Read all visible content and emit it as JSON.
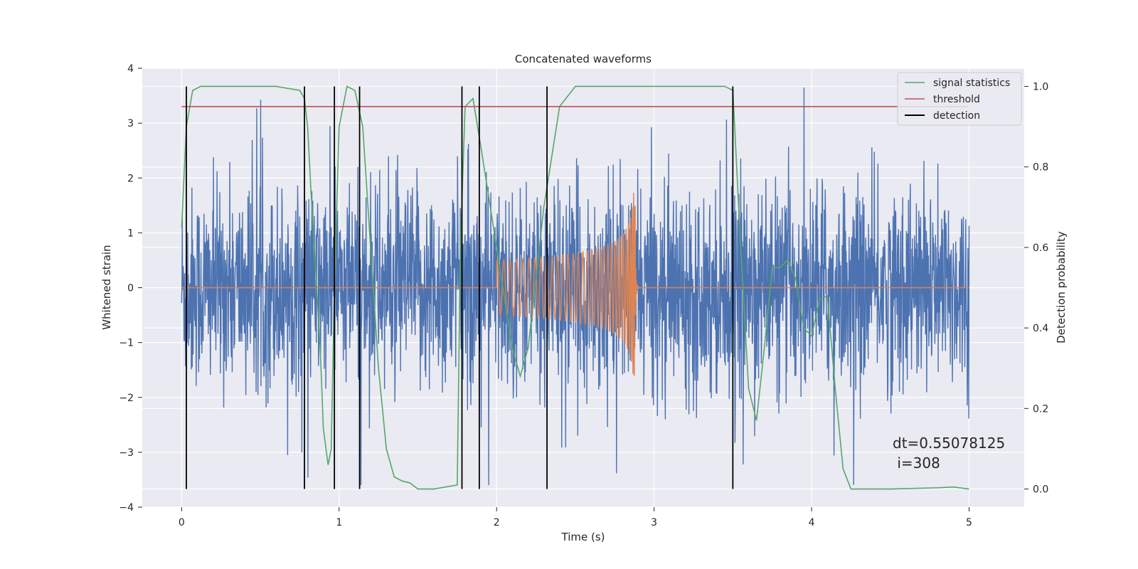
{
  "chart_data": {
    "type": "line",
    "title": "Concatenated waveforms",
    "xlabel": "Time (s)",
    "ylabel_left": "Whitened strain",
    "ylabel_right": "Detection probability",
    "xlim": [
      -0.25,
      5.35
    ],
    "ylim_left": [
      -4,
      4
    ],
    "ylim_right": [
      -0.045,
      1.045
    ],
    "x_ticks": [
      0,
      1,
      2,
      3,
      4,
      5
    ],
    "y_left_ticks": [
      -4,
      -3,
      -2,
      -1,
      0,
      1,
      2,
      3,
      4
    ],
    "y_right_ticks": [
      0.0,
      0.2,
      0.4,
      0.6,
      0.8,
      1.0
    ],
    "grid": true,
    "legend_position": "top-right",
    "series": [
      {
        "kind": "noise",
        "axis": "left",
        "color": "#4c72b0",
        "x_range": [
          0,
          5
        ],
        "typical_amplitude": 1.2,
        "max_peak": 3.65,
        "min_trough": -3.6
      },
      {
        "kind": "chirp",
        "axis": "left",
        "color": "#dd8452",
        "x_range": [
          0,
          5
        ],
        "zero_outside": true,
        "onset_x": 2.0,
        "onset_amplitude": 0.5,
        "merger_x": 2.88,
        "merger_peak": 2.05,
        "merger_trough": -1.6
      },
      {
        "name": "signal statistics",
        "axis": "right",
        "color": "#55a868",
        "x": [
          0,
          0.03,
          0.07,
          0.12,
          0.3,
          0.6,
          0.75,
          0.78,
          0.8,
          0.82,
          0.85,
          0.88,
          0.9,
          0.93,
          0.95,
          0.97,
          1.0,
          1.05,
          1.1,
          1.15,
          1.2,
          1.25,
          1.3,
          1.35,
          1.4,
          1.45,
          1.5,
          1.6,
          1.75,
          1.77,
          1.8,
          1.85,
          1.9,
          2.0,
          2.1,
          2.15,
          2.2,
          2.3,
          2.4,
          2.5,
          3.0,
          3.45,
          3.5,
          3.55,
          3.6,
          3.65,
          3.7,
          3.75,
          3.8,
          3.85,
          3.9,
          3.95,
          4.0,
          4.05,
          4.1,
          4.15,
          4.2,
          4.25,
          4.3,
          4.5,
          4.8,
          4.9,
          5.0
        ],
        "y": [
          0.65,
          0.9,
          0.99,
          1.0,
          1.0,
          1.0,
          0.99,
          0.97,
          0.9,
          0.75,
          0.55,
          0.35,
          0.15,
          0.06,
          0.1,
          0.5,
          0.9,
          1.0,
          0.99,
          0.9,
          0.6,
          0.3,
          0.1,
          0.03,
          0.02,
          0.015,
          0.0,
          0.0,
          0.01,
          0.6,
          0.95,
          0.97,
          0.85,
          0.6,
          0.35,
          0.28,
          0.35,
          0.7,
          0.95,
          1.0,
          1.0,
          1.0,
          0.99,
          0.6,
          0.25,
          0.17,
          0.35,
          0.55,
          0.55,
          0.57,
          0.52,
          0.4,
          0.38,
          0.47,
          0.48,
          0.25,
          0.05,
          0.0,
          0.0,
          0.0,
          0.003,
          0.005,
          0.0
        ]
      },
      {
        "name": "threshold",
        "axis": "right",
        "color": "#c44e52",
        "x": [
          0,
          5
        ],
        "y": [
          0.95,
          0.95
        ]
      },
      {
        "name": "detection",
        "axis": "right",
        "color": "#000000",
        "vlines_x": [
          0.03,
          0.78,
          0.97,
          1.13,
          1.78,
          1.89,
          2.32,
          3.5
        ],
        "vline_range": [
          0.0,
          1.0
        ]
      }
    ],
    "annotation": {
      "line1": "dt=0.55078125",
      "line2": " i=308",
      "position": "bottom-right"
    }
  }
}
